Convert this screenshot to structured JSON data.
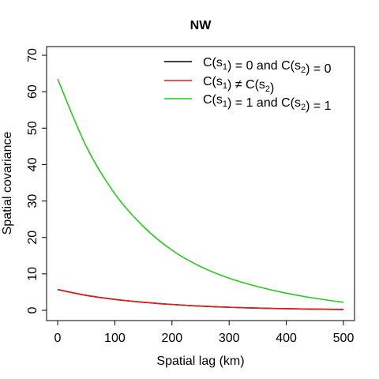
{
  "chart_data": {
    "type": "line",
    "title": "NW",
    "xlabel": "Spatial lag (km)",
    "ylabel": "Spatial covariance",
    "xlim": [
      0,
      500
    ],
    "ylim": [
      0,
      70
    ],
    "x_ticks": [
      0,
      100,
      200,
      300,
      400,
      500
    ],
    "y_ticks": [
      0,
      10,
      20,
      30,
      40,
      50,
      60,
      70
    ],
    "grid": false,
    "legend_position": "top-right",
    "x": [
      0,
      50,
      100,
      150,
      200,
      250,
      300,
      350,
      400,
      450,
      500
    ],
    "series": [
      {
        "name": "C(s1) = 0 and C(s2) = 0",
        "color": "#000000",
        "values": [
          5.7,
          4.1,
          3.0,
          2.2,
          1.6,
          1.15,
          0.84,
          0.61,
          0.44,
          0.32,
          0.23
        ]
      },
      {
        "name": "C(s1) ≠ C(s2)",
        "color": "#DF1F1F",
        "values": [
          5.7,
          4.1,
          3.0,
          2.2,
          1.6,
          1.15,
          0.84,
          0.61,
          0.44,
          0.32,
          0.23
        ]
      },
      {
        "name": "C(s1) = 1 and C(s2) = 1",
        "color": "#28C81E",
        "values": [
          63.5,
          45.0,
          32.0,
          23.0,
          16.5,
          12.0,
          8.8,
          6.5,
          4.7,
          3.3,
          2.2
        ]
      }
    ]
  },
  "legend": [
    {
      "pre": "C(s",
      "sub1": "1",
      "mid": ") = 0 and C(s",
      "sub2": "2",
      "post": ") = 0"
    },
    {
      "pre": "C(s",
      "sub1": "1",
      "mid": ") ≠ C(s",
      "sub2": "2",
      "post": ")"
    },
    {
      "pre": "C(s",
      "sub1": "1",
      "mid": ") = 1 and C(s",
      "sub2": "2",
      "post": ") = 1"
    }
  ]
}
